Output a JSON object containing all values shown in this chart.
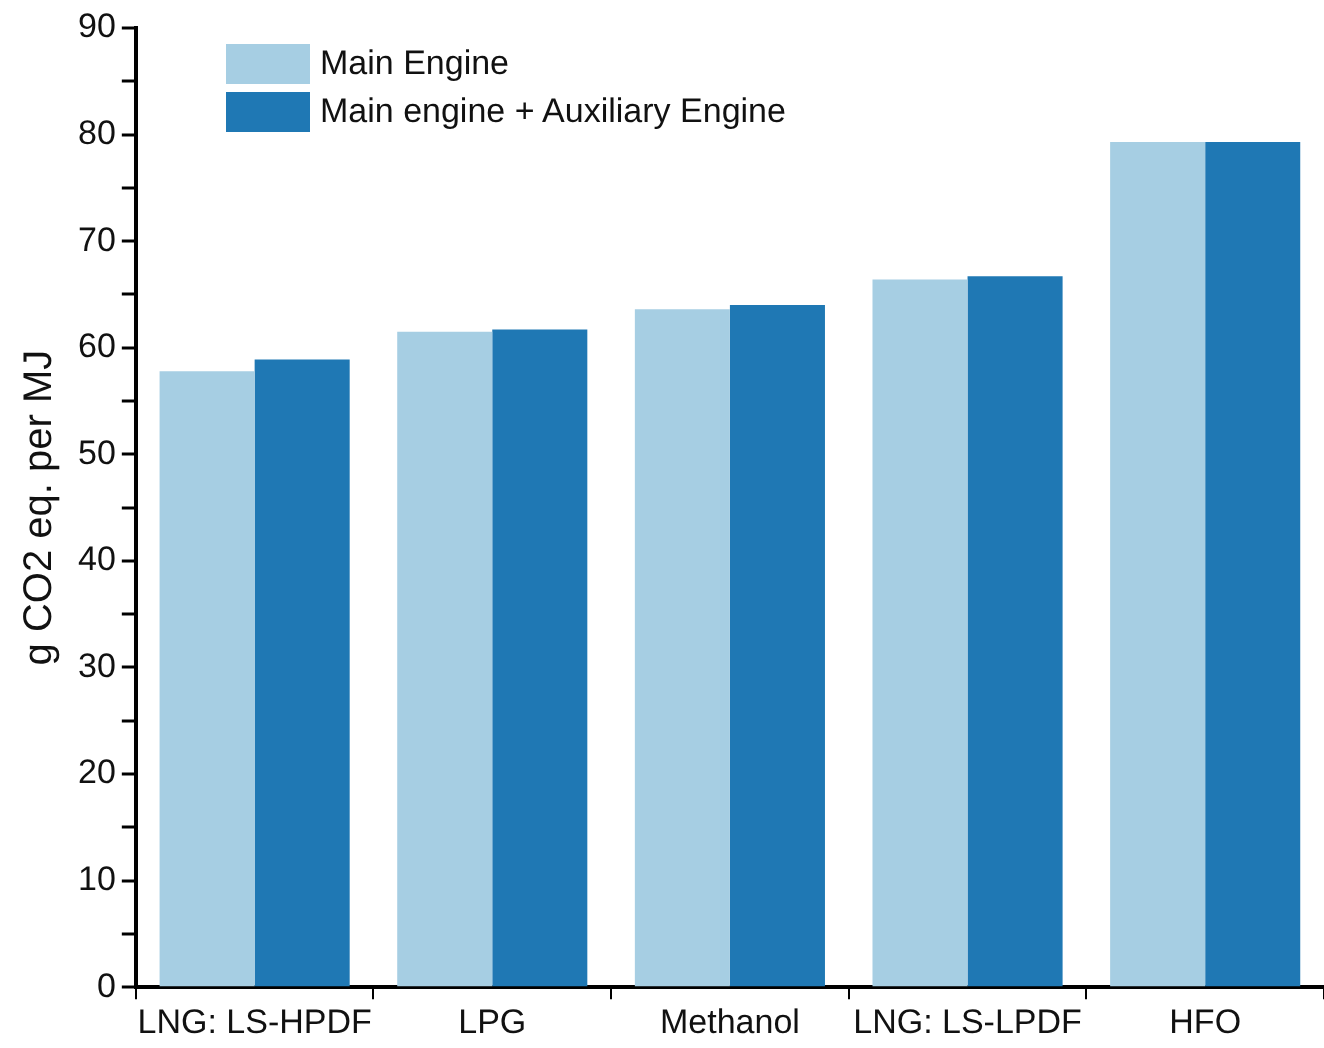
{
  "chart_data": {
    "type": "bar",
    "ylabel": "g CO2 eq. per MJ",
    "categories": [
      "LNG: LS-HPDF",
      "LPG",
      "Methanol",
      "LNG: LS-LPDF",
      "HFO"
    ],
    "series": [
      {
        "name": "Main Engine",
        "color": "#a6cee3",
        "values": [
          57.8,
          61.5,
          63.6,
          66.4,
          79.3
        ]
      },
      {
        "name": "Main engine + Auxiliary Engine",
        "color": "#1f78b4",
        "values": [
          58.9,
          61.7,
          64.0,
          66.7,
          79.3
        ]
      }
    ],
    "ylim": [
      0,
      90
    ],
    "yticks": [
      0,
      {
        "value": 5,
        "label": null
      },
      10,
      {
        "value": 15,
        "label": null
      },
      20,
      {
        "value": 25,
        "label": null
      },
      30,
      {
        "value": 35,
        "label": null
      },
      40,
      {
        "value": 45,
        "label": null
      },
      50,
      {
        "value": 55,
        "label": null
      },
      60,
      {
        "value": 65,
        "label": null
      },
      70,
      {
        "value": 75,
        "label": null
      },
      80,
      {
        "value": 85,
        "label": null
      },
      90
    ],
    "grid": false,
    "legend": "top left"
  }
}
